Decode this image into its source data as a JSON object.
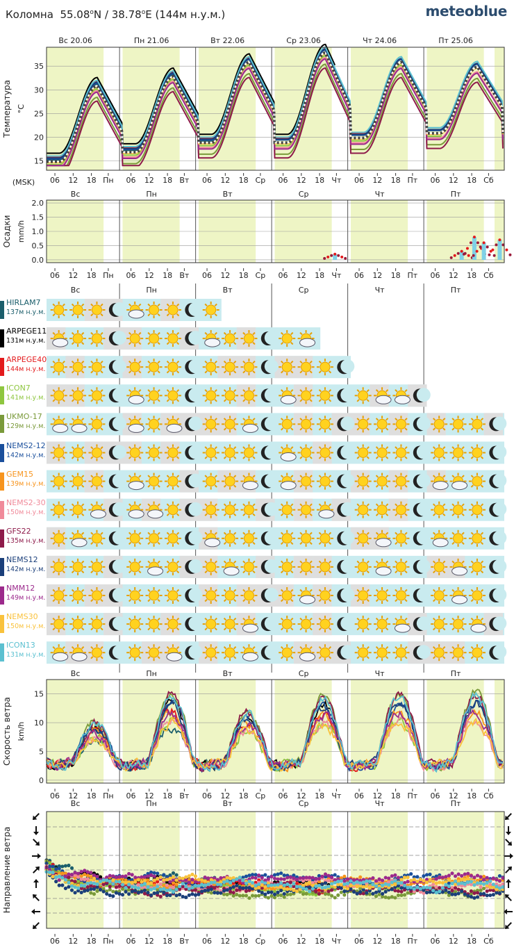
{
  "header": {
    "location": "Коломна",
    "lat": "55.08",
    "lon": "38.78",
    "alt": "(144м н.у.м.)",
    "brand": "meteoblue"
  },
  "days_top": [
    "Вс 20.06",
    "Пн 21.06",
    "Вт 22.06",
    "Ср 23.06",
    "Чт 24.06",
    "Пт 25.06"
  ],
  "days_short": [
    "Вс",
    "Пн",
    "Вт",
    "Ср",
    "Чт",
    "Пт"
  ],
  "axis_hours": [
    "06",
    "12",
    "18",
    "Пн",
    "06",
    "12",
    "18",
    "Вт",
    "06",
    "12",
    "18",
    "Ср",
    "06",
    "12",
    "18",
    "Чт",
    "06",
    "12",
    "18",
    "Пт",
    "06",
    "12",
    "18",
    "Сб"
  ],
  "timezone": "(MSK)",
  "models": [
    {
      "name": "HIRLAM7",
      "alt": "137м н.у.м.",
      "color": "#1b5e6b",
      "len": 2.3
    },
    {
      "name": "ARPEGE11",
      "alt": "131м н.у.м.",
      "color": "#000000",
      "len": 3.6
    },
    {
      "name": "ARPEGE40",
      "alt": "144м н.у.м.",
      "color": "#e31a1c",
      "len": 4.0
    },
    {
      "name": "ICON7",
      "alt": "141м н.у.м.",
      "color": "#8ec63f",
      "len": 5.0
    },
    {
      "name": "UKMO-17",
      "alt": "129м н.у.м.",
      "color": "#7a9a3a",
      "len": 6.0
    },
    {
      "name": "NEMS2-12",
      "alt": "142м н.у.м.",
      "color": "#1a4f9c",
      "len": 6.0
    },
    {
      "name": "GEM15",
      "alt": "139м н.у.м.",
      "color": "#f7941d",
      "len": 6.0
    },
    {
      "name": "NEMS2-30",
      "alt": "150м н.у.м.",
      "color": "#f08a9a",
      "len": 6.0
    },
    {
      "name": "GFS22",
      "alt": "135м н.у.м.",
      "color": "#8e1a4a",
      "len": 6.0
    },
    {
      "name": "NEMS12",
      "alt": "142м н.у.м.",
      "color": "#1b3f7a",
      "len": 6.0
    },
    {
      "name": "NMM12",
      "alt": "149м н.у.м.",
      "color": "#9c2a8c",
      "len": 6.0
    },
    {
      "name": "NEMS30",
      "alt": "150м н.у.м.",
      "color": "#f9c23c",
      "len": 6.0
    },
    {
      "name": "ICON13",
      "alt": "131м н.у.м.",
      "color": "#5bc0d0",
      "len": 6.0
    }
  ],
  "chart_data": [
    {
      "type": "line",
      "ylabel": "Температура",
      "unit": "°C",
      "y_ticks": [
        15,
        20,
        25,
        30,
        35
      ],
      "ylim": [
        13,
        39
      ],
      "note": "Diurnal temperature per model; daily minimum and maximum estimated from the chart",
      "daily_min": [
        15,
        17,
        19,
        19,
        20,
        21
      ],
      "daily_max": [
        31,
        33,
        36,
        38,
        36,
        35
      ]
    },
    {
      "type": "bar",
      "ylabel": "Осадки",
      "unit": "mm/h",
      "y_ticks": [
        0.0,
        0.5,
        1.0,
        1.5,
        2.0
      ],
      "ylim": [
        0,
        2.1
      ],
      "events": [
        {
          "day": "Ср",
          "hour": 19,
          "value": 0.2
        },
        {
          "day": "Пт",
          "hour": 11,
          "value": 0.3
        },
        {
          "day": "Пт",
          "hour": 15,
          "value": 0.8
        },
        {
          "day": "Пт",
          "hour": 18,
          "value": 0.6
        },
        {
          "day": "Пт",
          "hour": 23,
          "value": 0.7
        }
      ]
    },
    {
      "type": "line",
      "ylabel": "Скорость ветра",
      "unit": "km/h",
      "y_ticks": [
        0,
        5,
        10,
        15
      ],
      "ylim": [
        -0.5,
        17.5
      ],
      "daily_peak": [
        9,
        16,
        12,
        15,
        16,
        16
      ]
    },
    {
      "type": "scatter",
      "ylabel": "Направление ветра",
      "note": "Wind direction dots per model; mostly northerly to westerly, around 270–330°"
    }
  ]
}
